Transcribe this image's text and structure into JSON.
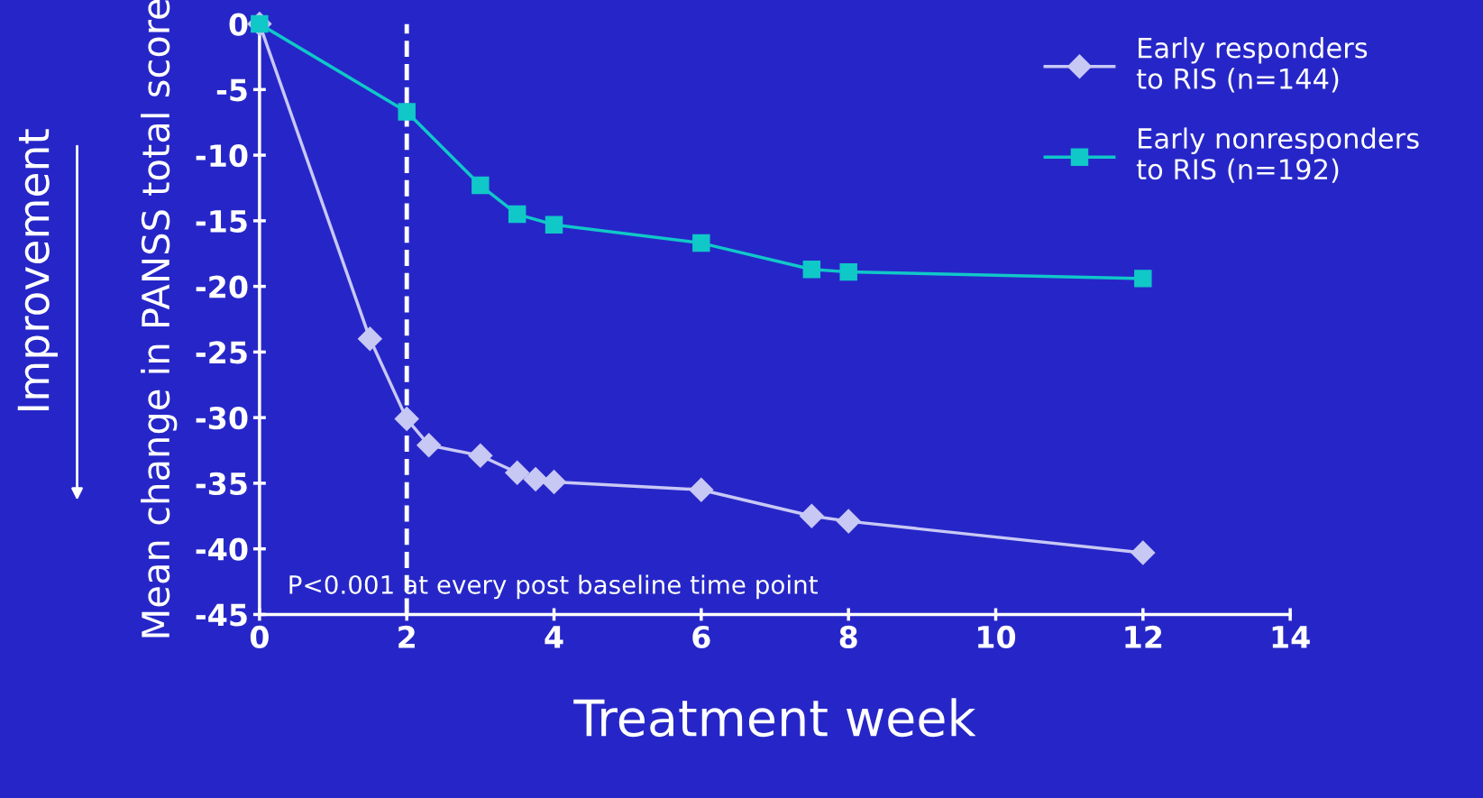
{
  "chart_data": {
    "type": "line",
    "xlabel": "Treatment week",
    "ylabel": "Mean change in PANSS total score",
    "annotations": [
      "Improvement",
      "P<0.001 at every post baseline time point"
    ],
    "series": [
      {
        "name": "Early responders\nto RIS (n=144)",
        "color": "#c8c8f5",
        "marker": "diamond",
        "x": [
          0,
          1.5,
          2,
          2.3,
          3,
          3.5,
          3.75,
          4,
          6,
          7.5,
          8,
          12
        ],
        "values": [
          0,
          -24,
          -30.1,
          -32.1,
          -32.9,
          -34.2,
          -34.7,
          -34.9,
          -35.5,
          -37.5,
          -37.9,
          -40.3
        ]
      },
      {
        "name": "Early nonresponders\nto RIS (n=192)",
        "color": "#10c8c8",
        "marker": "square",
        "x": [
          0,
          2,
          3,
          3.5,
          4,
          6,
          7.5,
          8,
          12
        ],
        "values": [
          0,
          -6.7,
          -12.3,
          -14.5,
          -15.3,
          -16.7,
          -18.7,
          -18.9,
          -19.4
        ]
      }
    ],
    "ref_lines": [
      {
        "axis": "x",
        "value": 2,
        "color": "#ffffff",
        "line_style": "dashed"
      }
    ],
    "xlim": [
      0,
      14
    ],
    "xticks": [
      0,
      2,
      4,
      6,
      8,
      10,
      12,
      14
    ],
    "ylim": [
      -45,
      0
    ],
    "yticks": [
      0,
      -5,
      -10,
      -15,
      -20,
      -25,
      -30,
      -35,
      -40,
      -45
    ],
    "grid": false,
    "legend": "top right"
  }
}
